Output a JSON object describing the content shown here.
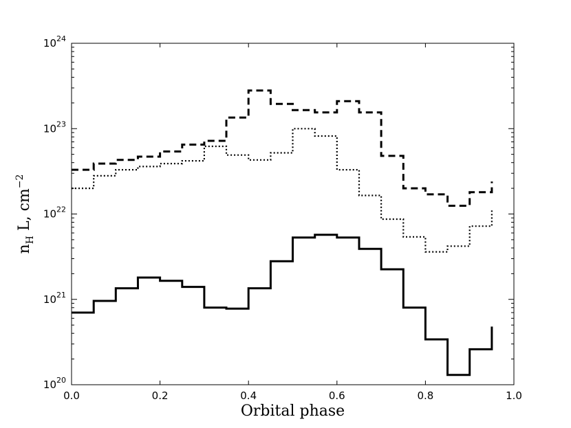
{
  "chart_data": {
    "type": "line",
    "xlabel": "Orbital phase",
    "ylabel": {
      "base": "n",
      "sub": "H",
      "rest": " L, cm",
      "sup": "−2"
    },
    "xlim": [
      0.0,
      1.0
    ],
    "ylim": [
      1e+20,
      1e+24
    ],
    "yscale": "log",
    "grid": false,
    "x_ticks": [
      "0.0",
      "0.2",
      "0.4",
      "0.6",
      "0.8",
      "1.0"
    ],
    "x_tick_values": [
      0.0,
      0.2,
      0.4,
      0.6,
      0.8,
      1.0
    ],
    "y_ticks": [
      {
        "value": 1e+20,
        "base": "10",
        "exp": "20"
      },
      {
        "value": 1e+21,
        "base": "10",
        "exp": "21"
      },
      {
        "value": 1e+22,
        "base": "10",
        "exp": "22"
      },
      {
        "value": 1e+23,
        "base": "10",
        "exp": "23"
      },
      {
        "value": 1e+24,
        "base": "10",
        "exp": "24"
      }
    ],
    "x": [
      0.0,
      0.05,
      0.1,
      0.15,
      0.2,
      0.25,
      0.3,
      0.35,
      0.4,
      0.45,
      0.5,
      0.55,
      0.6,
      0.65,
      0.7,
      0.75,
      0.8,
      0.85,
      0.9,
      0.95
    ],
    "series": [
      {
        "style": "dashed",
        "color": "#000000",
        "values": [
          3.3e+22,
          3.9e+22,
          4.3e+22,
          4.7e+22,
          5.4e+22,
          6.5e+22,
          7.2e+22,
          1.35e+23,
          2.8e+23,
          1.95e+23,
          1.65e+23,
          1.55e+23,
          2.1e+23,
          1.55e+23,
          4.8e+22,
          2e+22,
          1.7e+22,
          1.25e+22,
          1.8e+22,
          2.4e+22
        ]
      },
      {
        "style": "dotted",
        "color": "#000000",
        "values": [
          2e+22,
          2.8e+22,
          3.3e+22,
          3.6e+22,
          3.9e+22,
          4.2e+22,
          6.2e+22,
          4.9e+22,
          4.3e+22,
          5.2e+22,
          1e+23,
          8.2e+22,
          3.3e+22,
          1.65e+22,
          8.7e+21,
          5.4e+21,
          3.6e+21,
          4.2e+21,
          7.2e+21,
          1.15e+22
        ]
      },
      {
        "style": "solid",
        "color": "#000000",
        "values": [
          7e+20,
          9.6e+20,
          1.35e+21,
          1.8e+21,
          1.65e+21,
          1.4e+21,
          8e+20,
          7.8e+20,
          1.35e+21,
          2.8e+21,
          5.3e+21,
          5.7e+21,
          5.3e+21,
          3.9e+21,
          2.25e+21,
          8e+20,
          3.4e+20,
          1.3e+20,
          2.6e+20,
          4.8e+20
        ]
      }
    ]
  }
}
